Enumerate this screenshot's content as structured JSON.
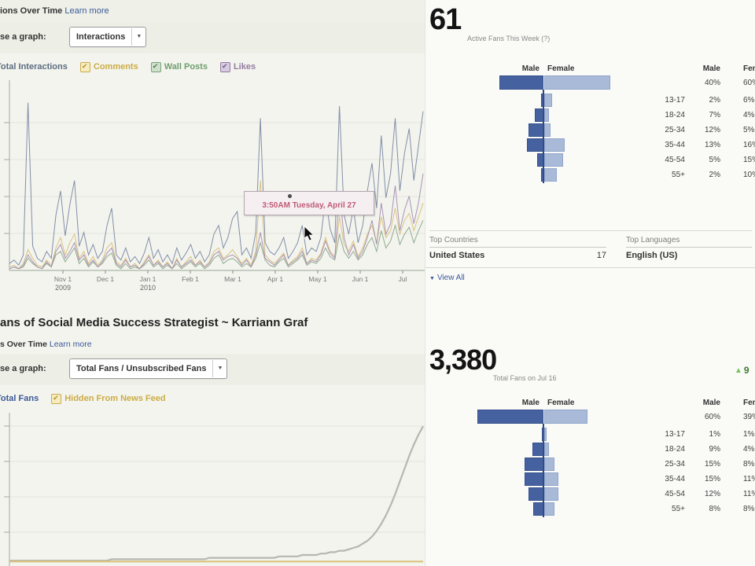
{
  "interactions_panel": {
    "title_fragment": "ions Over Time",
    "learn_more": "Learn more",
    "chooser_label_fragment": "se a graph:",
    "dropdown_value": "Interactions",
    "dropdown_arrow": "▼",
    "legend": [
      {
        "label": "Total Interactions",
        "text_color": "#5b6c80",
        "checkbox": null
      },
      {
        "label": "Comments",
        "text_color": "#ccac45",
        "checkbox": {
          "fill": "#f6ecbe",
          "border": "#c9ac4e",
          "check": "#b2952e"
        }
      },
      {
        "label": "Wall Posts",
        "text_color": "#6e9e6e",
        "checkbox": {
          "fill": "#cfe0cd",
          "border": "#79a379",
          "check": "#4e7f4e"
        }
      },
      {
        "label": "Likes",
        "text_color": "#937aa0",
        "checkbox": {
          "fill": "#d8cbe0",
          "border": "#947ba3",
          "check": "#6f5584"
        }
      }
    ],
    "tooltip": {
      "text": "3:50AM Tuesday, April 27",
      "text_color": "#c05a75"
    }
  },
  "fans_panel": {
    "heading_fragment": "ans of Social Media Success Strategist ~ Karriann Graf",
    "subtitle_fragment": "s Over Time",
    "learn_more": "Learn more",
    "chooser_label_fragment": "se a graph:",
    "dropdown_value": "Total Fans / Unsubscribed Fans",
    "dropdown_arrow": "▼",
    "legend": [
      {
        "label": "Total Fans",
        "text_color": "#3b5998",
        "checkbox": null
      },
      {
        "label": "Hidden From News Feed",
        "text_color": "#ccac45",
        "checkbox": {
          "fill": "#f6ecbe",
          "border": "#c9ac4e",
          "check": "#b2952e"
        }
      }
    ]
  },
  "active_fans_panel": {
    "value": "61",
    "caption": "Active Fans This Week (?)",
    "demographics": {
      "male_header": "Male",
      "female_header": "Female",
      "male_total": "40%",
      "female_total": "60%",
      "bar_colors": {
        "male": "#46619f",
        "male_border": "#35518b",
        "female": "#a9bad8",
        "female_border": "#91a6cc",
        "stem": "#2e4781"
      },
      "rows": [
        {
          "age": "13-17",
          "male": "2%",
          "female": "6%"
        },
        {
          "age": "18-24",
          "male": "7%",
          "female": "4%"
        },
        {
          "age": "25-34",
          "male": "12%",
          "female": "5%"
        },
        {
          "age": "35-44",
          "male": "13%",
          "female": "16%"
        },
        {
          "age": "45-54",
          "male": "5%",
          "female": "15%"
        },
        {
          "age": "55+",
          "male": "2%",
          "female": "10%"
        }
      ]
    },
    "top_countries": {
      "header": "Top Countries",
      "rows": [
        {
          "name": "United States",
          "value": "17"
        }
      ]
    },
    "top_languages": {
      "header": "Top Languages",
      "rows": [
        {
          "name": "English (US)",
          "value": ""
        }
      ]
    },
    "view_all": "View All",
    "view_all_arrow": "▼"
  },
  "total_fans_panel": {
    "value": "3,380",
    "caption": "Total Fans on Jul 16",
    "delta": {
      "arrow": "▲",
      "value": "9",
      "color": "#7cbf5e"
    },
    "demographics": {
      "male_header": "Male",
      "female_header": "Female",
      "male_total": "60%",
      "female_total": "39%",
      "bar_colors": {
        "male": "#46619f",
        "male_border": "#35518b",
        "female": "#a9bad8",
        "female_border": "#91a6cc",
        "stem": "#2e4781"
      },
      "rows": [
        {
          "age": "13-17",
          "male": "1%",
          "female": "1%"
        },
        {
          "age": "18-24",
          "male": "9%",
          "female": "4%"
        },
        {
          "age": "25-34",
          "male": "15%",
          "female": "8%"
        },
        {
          "age": "35-44",
          "male": "15%",
          "female": "11%"
        },
        {
          "age": "45-54",
          "male": "12%",
          "female": "11%"
        },
        {
          "age": "55+",
          "male": "8%",
          "female": "8%"
        }
      ]
    }
  },
  "chart_data": [
    {
      "type": "line",
      "title": "Interactions Over Time",
      "x_ticks": [
        "Nov 1",
        "Dec 1",
        "Jan 1",
        "Feb 1",
        "Mar 1",
        "Apr 1",
        "May 1",
        "Jun 1",
        "Jul"
      ],
      "year_labels": [
        {
          "label": "2009",
          "tick_index": 0
        },
        {
          "label": "2010",
          "tick_index": 2
        }
      ],
      "y_scale_note": "relative 0-100 of plot height; y-axis value labels cropped off-screen",
      "legend_position": "top",
      "grid": true,
      "series": [
        {
          "name": "Total Interactions",
          "color": "#7c89a3",
          "values": [
            4,
            6,
            3,
            9,
            97,
            14,
            7,
            5,
            11,
            7,
            32,
            46,
            20,
            38,
            52,
            14,
            22,
            9,
            15,
            7,
            11,
            26,
            36,
            9,
            6,
            13,
            5,
            8,
            4,
            10,
            19,
            7,
            12,
            5,
            9,
            4,
            13,
            6,
            10,
            15,
            7,
            11,
            5,
            9,
            21,
            26,
            13,
            19,
            30,
            34,
            9,
            13,
            7,
            22,
            88,
            16,
            11,
            9,
            13,
            19,
            7,
            11,
            16,
            26,
            9,
            13,
            11,
            19,
            42,
            24,
            16,
            95,
            32,
            21,
            36,
            16,
            26,
            46,
            62,
            36,
            78,
            42,
            56,
            88,
            46,
            68,
            82,
            52,
            72,
            92
          ]
        },
        {
          "name": "Comments",
          "color": "#d9c078",
          "values": [
            2,
            3,
            1,
            4,
            12,
            7,
            3,
            2,
            6,
            3,
            13,
            19,
            9,
            16,
            21,
            7,
            11,
            4,
            8,
            3,
            6,
            13,
            16,
            5,
            3,
            7,
            2,
            4,
            1,
            5,
            9,
            3,
            6,
            2,
            5,
            1,
            7,
            2,
            5,
            8,
            3,
            6,
            2,
            5,
            11,
            13,
            7,
            9,
            12,
            8,
            4,
            7,
            3,
            11,
            52,
            9,
            6,
            4,
            7,
            10,
            3,
            6,
            8,
            13,
            4,
            7,
            6,
            10,
            19,
            11,
            8,
            31,
            15,
            11,
            17,
            8,
            13,
            21,
            26,
            16,
            31,
            19,
            23,
            36,
            21,
            29,
            33,
            23,
            31,
            39
          ]
        },
        {
          "name": "Wall Posts",
          "color": "#8aa88a",
          "values": [
            1,
            2,
            1,
            2,
            7,
            4,
            2,
            1,
            4,
            2,
            9,
            11,
            5,
            9,
            13,
            4,
            7,
            2,
            5,
            2,
            4,
            8,
            10,
            3,
            1,
            4,
            1,
            2,
            1,
            3,
            6,
            2,
            4,
            1,
            3,
            1,
            4,
            1,
            3,
            5,
            2,
            4,
            1,
            3,
            7,
            9,
            4,
            6,
            7,
            5,
            2,
            4,
            2,
            7,
            16,
            6,
            3,
            2,
            5,
            7,
            2,
            4,
            6,
            9,
            3,
            5,
            4,
            7,
            13,
            8,
            6,
            21,
            11,
            7,
            11,
            6,
            9,
            15,
            19,
            11,
            23,
            13,
            17,
            26,
            15,
            21,
            25,
            16,
            23,
            29
          ]
        },
        {
          "name": "Likes",
          "color": "#a48cb3",
          "values": [
            1,
            2,
            1,
            3,
            9,
            5,
            2,
            1,
            5,
            2,
            11,
            15,
            7,
            11,
            16,
            6,
            9,
            3,
            6,
            2,
            5,
            10,
            13,
            4,
            2,
            6,
            2,
            3,
            1,
            4,
            8,
            3,
            5,
            2,
            4,
            1,
            6,
            2,
            4,
            6,
            3,
            5,
            2,
            4,
            9,
            11,
            6,
            8,
            9,
            7,
            3,
            6,
            2,
            9,
            22,
            7,
            5,
            3,
            6,
            9,
            3,
            5,
            7,
            11,
            4,
            6,
            5,
            9,
            17,
            10,
            7,
            46,
            19,
            9,
            15,
            7,
            11,
            19,
            29,
            15,
            39,
            21,
            27,
            49,
            23,
            35,
            43,
            27,
            39,
            56
          ]
        }
      ]
    },
    {
      "type": "line",
      "title": "Fans Over Time",
      "x_ticks": [],
      "y_scale_note": "relative 0-100 of plot height; axis labels cropped off-screen",
      "grid": true,
      "series": [
        {
          "name": "Total Fans",
          "color": "#b3b3ae",
          "values": [
            1,
            1,
            1,
            1,
            1,
            1,
            1,
            1,
            1,
            1,
            1,
            1,
            1,
            1,
            1,
            1,
            1,
            1,
            1,
            1,
            1,
            1,
            2,
            2,
            2,
            2,
            2,
            2,
            2,
            2,
            2,
            2,
            2,
            2,
            2,
            2,
            2,
            2,
            2,
            2,
            2,
            2,
            2,
            3,
            3,
            3,
            3,
            3,
            3,
            3,
            3,
            3,
            3,
            3,
            3,
            3,
            3,
            3,
            4,
            4,
            4,
            4,
            4,
            5,
            5,
            5,
            5,
            6,
            6,
            7,
            7,
            8,
            8,
            9,
            10,
            11,
            13,
            15,
            18,
            22,
            27,
            33,
            40,
            48,
            57,
            66,
            75,
            83,
            90,
            96
          ]
        },
        {
          "name": "Hidden From News Feed",
          "color": "#d9c078",
          "values": [
            0.4,
            0.4
          ]
        }
      ]
    }
  ]
}
